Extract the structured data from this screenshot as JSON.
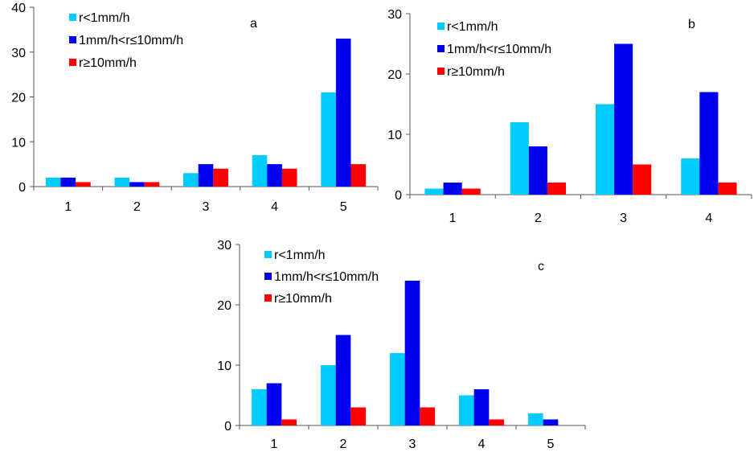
{
  "colors": {
    "light": "#00ccff",
    "moderate": "#0000ee",
    "heavy": "#ff0000",
    "axis": "#555555"
  },
  "chart_data": [
    {
      "type": "bar",
      "panel_label": "a",
      "categories": [
        "1",
        "2",
        "3",
        "4",
        "5"
      ],
      "series": [
        {
          "name": "r<1mm/h",
          "values": [
            2,
            2,
            3,
            7,
            21
          ]
        },
        {
          "name": "1mm/h<r≤10mm/h",
          "values": [
            2,
            1,
            5,
            5,
            33
          ]
        },
        {
          "name": "r≥10mm/h",
          "values": [
            1,
            1,
            4,
            4,
            5
          ]
        }
      ],
      "ylim": [
        0,
        40
      ],
      "yticks": [
        0,
        10,
        20,
        30,
        40
      ],
      "legend": "top-left"
    },
    {
      "type": "bar",
      "panel_label": "b",
      "categories": [
        "1",
        "2",
        "3",
        "4"
      ],
      "series": [
        {
          "name": "r<1mm/h",
          "values": [
            1,
            12,
            15,
            6
          ]
        },
        {
          "name": "1mm/h<r≤10mm/h",
          "values": [
            2,
            8,
            25,
            17
          ]
        },
        {
          "name": "r≥10mm/h",
          "values": [
            1,
            2,
            5,
            2
          ]
        }
      ],
      "ylim": [
        0,
        30
      ],
      "yticks": [
        0,
        10,
        20,
        30
      ],
      "legend": "top-left"
    },
    {
      "type": "bar",
      "panel_label": "c",
      "categories": [
        "1",
        "2",
        "3",
        "4",
        "5"
      ],
      "series": [
        {
          "name": "r<1mm/h",
          "values": [
            6,
            10,
            12,
            5,
            2
          ]
        },
        {
          "name": "1mm/h<r≤10mm/h",
          "values": [
            7,
            15,
            24,
            6,
            1
          ]
        },
        {
          "name": "r≥10mm/h",
          "values": [
            1,
            3,
            3,
            1,
            0
          ]
        }
      ],
      "ylim": [
        0,
        30
      ],
      "yticks": [
        0,
        10,
        20,
        30
      ],
      "legend": "top-left"
    }
  ]
}
